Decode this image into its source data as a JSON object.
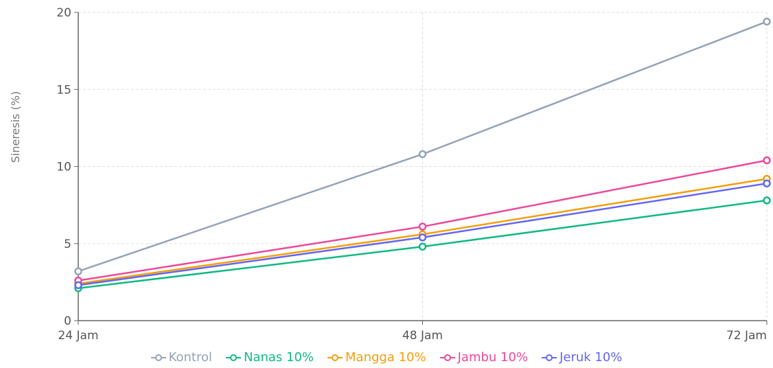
{
  "chart_data": {
    "type": "line",
    "y_label": "Sineresis (%)",
    "categories": [
      "24 Jam",
      "48 Jam",
      "72 Jam"
    ],
    "series": [
      {
        "name": "Kontrol",
        "color": "#94a3b8",
        "values": [
          3.2,
          10.8,
          19.4
        ]
      },
      {
        "name": "Nanas 10%",
        "color": "#10b981",
        "values": [
          2.1,
          4.8,
          7.8
        ]
      },
      {
        "name": "Mangga 10%",
        "color": "#f59e0b",
        "values": [
          2.4,
          5.6,
          9.2
        ]
      },
      {
        "name": "Jambu 10%",
        "color": "#ec4899",
        "values": [
          2.6,
          6.1,
          10.4
        ]
      },
      {
        "name": "Jeruk 10%",
        "color": "#6366f1",
        "values": [
          2.3,
          5.4,
          8.9
        ]
      }
    ],
    "ylim": [
      0,
      20
    ],
    "yticks": [
      0,
      5,
      10,
      15,
      20
    ],
    "grid": true,
    "legend": "bottom"
  }
}
